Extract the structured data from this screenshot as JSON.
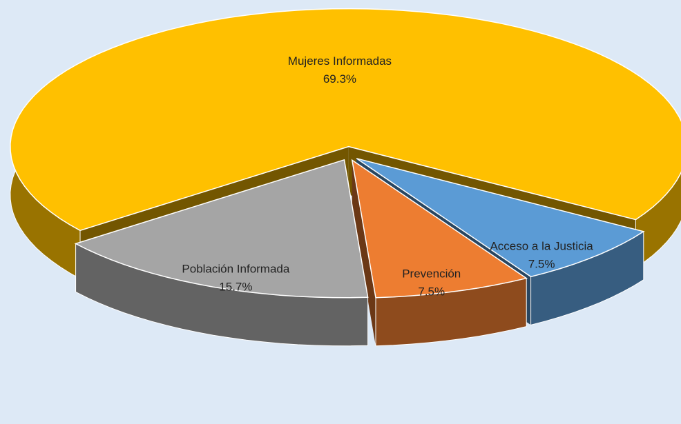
{
  "chart_data": {
    "type": "pie3d",
    "categories": [
      "Mujeres Informadas",
      "Acceso a la Justicia",
      "Prevención",
      "Población Informada"
    ],
    "values": [
      69.3,
      7.5,
      7.5,
      15.7
    ],
    "value_labels": [
      "69.3%",
      "7.5%",
      "7.5%",
      "15.7%"
    ],
    "colors": [
      "#ffc000",
      "#5b9bd5",
      "#ed7d31",
      "#a5a5a5"
    ]
  }
}
